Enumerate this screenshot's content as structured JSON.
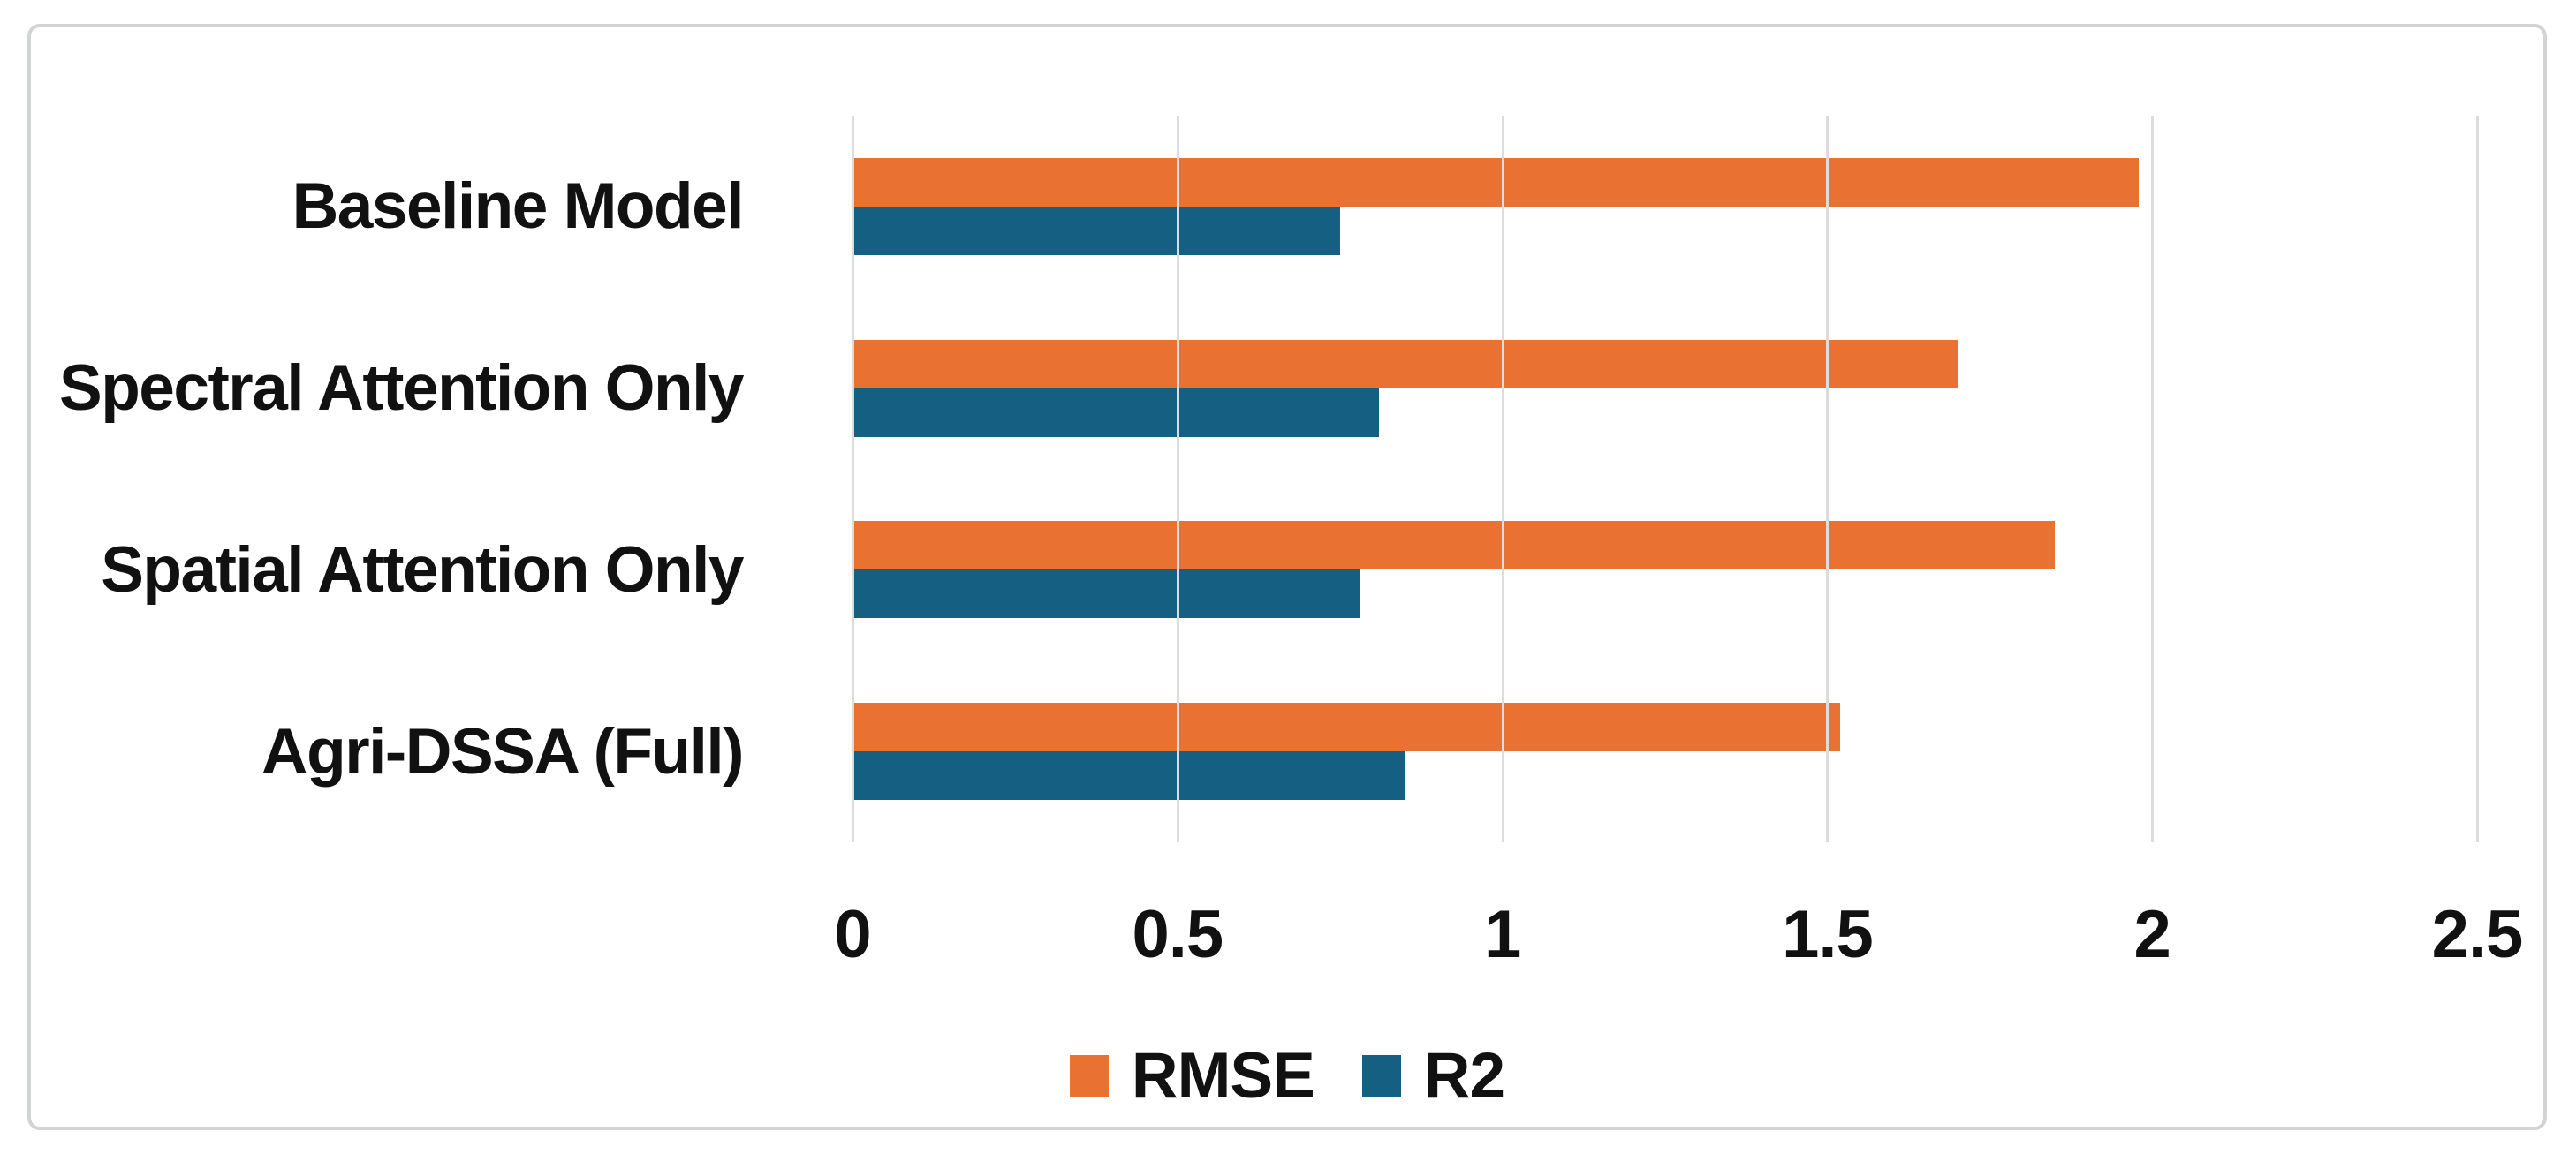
{
  "chart_data": {
    "type": "bar",
    "orientation": "horizontal",
    "title": "",
    "xlabel": "",
    "ylabel": "",
    "categories": [
      "Baseline Model",
      "Spectral Attention Only",
      "Spatial Attention Only",
      "Agri-DSSA (Full)"
    ],
    "series": [
      {
        "name": "RMSE",
        "color": "#E97132",
        "values": [
          1.98,
          1.7,
          1.85,
          1.52
        ]
      },
      {
        "name": "R2",
        "color": "#156082",
        "values": [
          0.75,
          0.81,
          0.78,
          0.85
        ]
      }
    ],
    "xlim": [
      0,
      2.5
    ],
    "x_ticks": [
      0,
      0.5,
      1,
      1.5,
      2,
      2.5
    ],
    "x_tick_labels": [
      "0",
      "0.5",
      "1",
      "1.5",
      "2",
      "2.5"
    ],
    "grid": "vertical-gridlines-on",
    "legend_position": "bottom-center",
    "colors": {
      "grid": "#DCDCDC",
      "frame_border": "#D2D3D4",
      "text": "#111111",
      "background": "#FFFFFF"
    }
  }
}
